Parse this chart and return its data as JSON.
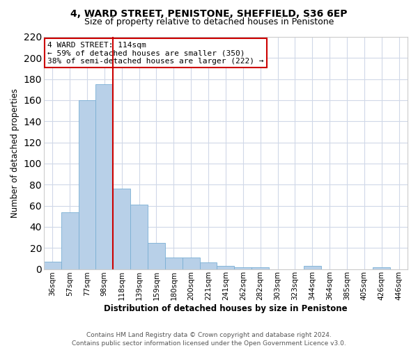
{
  "title_line1": "4, WARD STREET, PENISTONE, SHEFFIELD, S36 6EP",
  "title_line2": "Size of property relative to detached houses in Penistone",
  "xlabel": "Distribution of detached houses by size in Penistone",
  "ylabel": "Number of detached properties",
  "bar_labels": [
    "36sqm",
    "57sqm",
    "77sqm",
    "98sqm",
    "118sqm",
    "139sqm",
    "159sqm",
    "180sqm",
    "200sqm",
    "221sqm",
    "241sqm",
    "262sqm",
    "282sqm",
    "303sqm",
    "323sqm",
    "344sqm",
    "364sqm",
    "385sqm",
    "405sqm",
    "426sqm",
    "446sqm"
  ],
  "bar_values": [
    7,
    54,
    160,
    175,
    76,
    61,
    25,
    11,
    11,
    6,
    3,
    2,
    2,
    0,
    0,
    3,
    0,
    0,
    0,
    2,
    0
  ],
  "bar_color": "#b8d0e8",
  "bar_edge_color": "#7aafd4",
  "vline_color": "#cc0000",
  "vline_x_index": 4,
  "ylim": [
    0,
    220
  ],
  "yticks": [
    0,
    20,
    40,
    60,
    80,
    100,
    120,
    140,
    160,
    180,
    200,
    220
  ],
  "annotation_title": "4 WARD STREET: 114sqm",
  "annotation_line1": "← 59% of detached houses are smaller (350)",
  "annotation_line2": "38% of semi-detached houses are larger (222) →",
  "annotation_box_color": "#ffffff",
  "annotation_box_edge": "#cc0000",
  "footer_line1": "Contains HM Land Registry data © Crown copyright and database right 2024.",
  "footer_line2": "Contains public sector information licensed under the Open Government Licence v3.0.",
  "background_color": "#ffffff",
  "grid_color": "#d0d8e8",
  "title_fontsize": 10,
  "subtitle_fontsize": 9,
  "xlabel_fontsize": 8.5,
  "ylabel_fontsize": 8.5,
  "tick_fontsize": 7.5,
  "footer_fontsize": 6.5
}
